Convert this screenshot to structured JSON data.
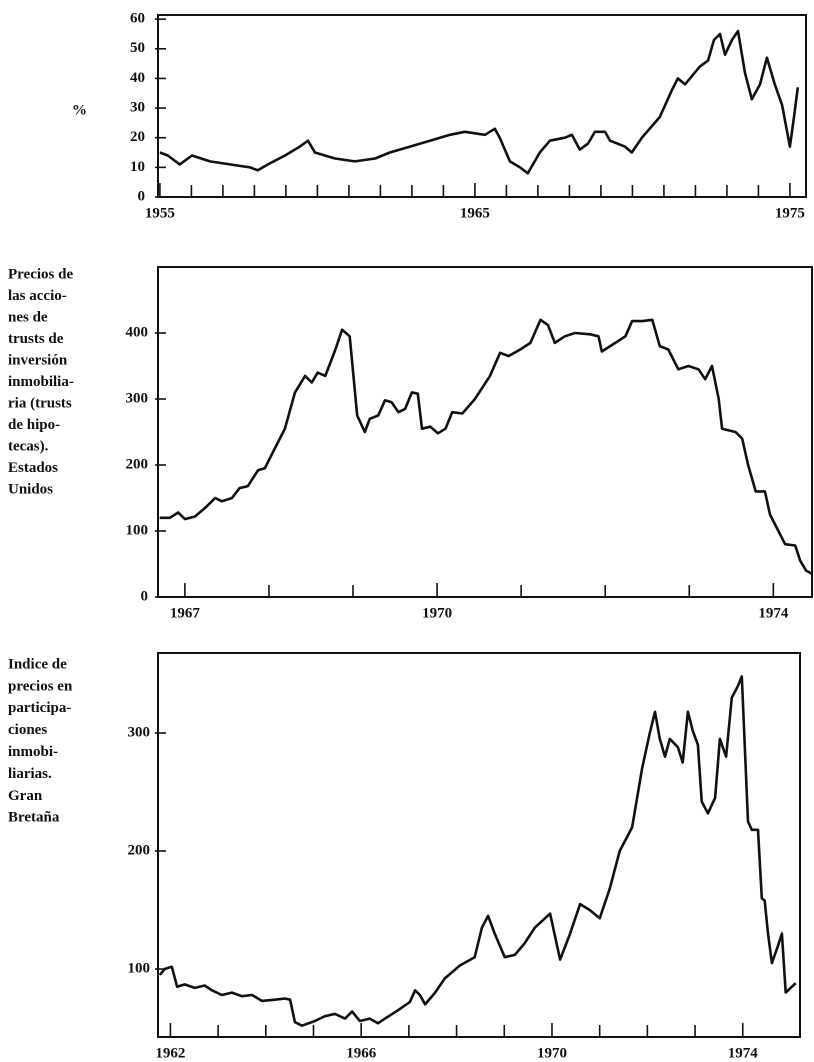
{
  "chart_data": [
    {
      "type": "line",
      "ylabel": [
        "%"
      ],
      "color": "#111111",
      "xlim": [
        1954.94,
        1975.51
      ],
      "xticks": [
        1955,
        1965,
        1975
      ],
      "minor_xticks": [
        1956,
        1957,
        1958,
        1959,
        1960,
        1961,
        1962,
        1963,
        1964,
        1966,
        1967,
        1968,
        1969,
        1970,
        1971,
        1972,
        1973,
        1974
      ],
      "ylim": [
        0,
        61.4
      ],
      "yticks": [
        0,
        10,
        20,
        30,
        40,
        50,
        60
      ],
      "x": [
        1955.0,
        1955.25,
        1955.63,
        1956.02,
        1956.59,
        1957.22,
        1957.86,
        1958.11,
        1958.43,
        1958.97,
        1959.44,
        1959.7,
        1959.92,
        1960.56,
        1961.19,
        1961.83,
        1962.3,
        1962.94,
        1963.57,
        1964.21,
        1964.68,
        1965.32,
        1965.63,
        1965.79,
        1966.11,
        1966.43,
        1966.68,
        1967.06,
        1967.38,
        1967.86,
        1968.08,
        1968.33,
        1968.59,
        1968.81,
        1969.13,
        1969.29,
        1969.76,
        1969.98,
        1970.3,
        1970.87,
        1971.25,
        1971.44,
        1971.67,
        1972.14,
        1972.4,
        1972.59,
        1972.78,
        1972.94,
        1973.16,
        1973.35,
        1973.57,
        1973.79,
        1974.05,
        1974.27,
        1974.52,
        1974.75,
        1975.0,
        1975.13,
        1975.25
      ],
      "values": [
        15,
        14,
        11,
        14,
        12,
        11,
        10,
        9,
        11,
        14,
        17,
        19,
        15,
        13,
        12,
        13,
        15,
        17,
        19,
        21,
        22,
        21,
        23,
        20,
        12,
        10,
        8,
        15,
        19,
        20,
        21,
        16,
        18,
        22,
        22,
        19,
        17,
        15,
        20,
        27,
        36,
        40,
        38,
        44,
        46,
        53,
        55,
        48,
        53,
        56,
        42,
        33,
        38,
        47,
        38,
        31,
        17,
        27,
        37
      ]
    },
    {
      "type": "line",
      "ylabel": [
        "Precios de",
        "las accio-",
        "nes de",
        "trusts de",
        "inversión",
        "inmobilia-",
        "ria (trusts",
        "de hipo-",
        "tecas).",
        "Estados",
        "Unidos"
      ],
      "color": "#111111",
      "xlim": [
        1966.68,
        1974.46
      ],
      "xticks": [
        1967,
        1970,
        1974
      ],
      "minor_xticks": [
        1968,
        1969,
        1971,
        1972,
        1973
      ],
      "ylim": [
        0,
        500
      ],
      "yticks": [
        0,
        100,
        200,
        300,
        400
      ],
      "x": [
        1966.7,
        1966.82,
        1966.92,
        1967.0,
        1967.12,
        1967.24,
        1967.36,
        1967.44,
        1967.56,
        1967.65,
        1967.75,
        1967.87,
        1967.95,
        1968.07,
        1968.19,
        1968.31,
        1968.43,
        1968.51,
        1968.58,
        1968.67,
        1968.79,
        1968.87,
        1968.96,
        1969.05,
        1969.14,
        1969.2,
        1969.3,
        1969.38,
        1969.46,
        1969.54,
        1969.62,
        1969.7,
        1969.77,
        1969.82,
        1969.92,
        1970.01,
        1970.1,
        1970.18,
        1970.3,
        1970.45,
        1970.63,
        1970.75,
        1970.85,
        1970.99,
        1971.11,
        1971.23,
        1971.32,
        1971.4,
        1971.52,
        1971.64,
        1971.82,
        1971.92,
        1971.96,
        1972.12,
        1972.24,
        1972.32,
        1972.44,
        1972.56,
        1972.65,
        1972.75,
        1972.87,
        1972.99,
        1973.11,
        1973.19,
        1973.27,
        1973.35,
        1973.39,
        1973.55,
        1973.63,
        1973.7,
        1973.79,
        1973.9,
        1973.96,
        1974.06,
        1974.14,
        1974.26,
        1974.32,
        1974.39,
        1974.46
      ],
      "values": [
        120,
        120,
        128,
        118,
        122,
        135,
        150,
        145,
        150,
        165,
        168,
        192,
        195,
        225,
        255,
        310,
        335,
        325,
        340,
        335,
        375,
        405,
        395,
        275,
        250,
        270,
        275,
        298,
        295,
        280,
        285,
        310,
        308,
        255,
        258,
        248,
        255,
        280,
        278,
        300,
        335,
        370,
        365,
        375,
        385,
        420,
        412,
        385,
        395,
        400,
        398,
        395,
        372,
        385,
        395,
        418,
        418,
        420,
        380,
        375,
        345,
        350,
        345,
        330,
        350,
        300,
        255,
        250,
        240,
        200,
        160,
        160,
        125,
        100,
        80,
        78,
        55,
        40,
        35
      ]
    },
    {
      "type": "line",
      "ylabel": [
        "Indice de",
        "precios en",
        "participa-",
        "ciones",
        "inmobi-",
        "liarias.",
        "Gran",
        "Bretaña"
      ],
      "color": "#111111",
      "xlim": [
        1961.74,
        1975.2
      ],
      "xticks": [
        1962,
        1966,
        1970,
        1974
      ],
      "minor_xticks": [
        1963,
        1964,
        1965,
        1967,
        1968,
        1969,
        1971,
        1972,
        1973
      ],
      "ylim": [
        42.4,
        367.8
      ],
      "yticks": [
        100,
        200,
        300
      ],
      "x": [
        1961.78,
        1961.88,
        1962.03,
        1962.14,
        1962.3,
        1962.51,
        1962.72,
        1962.87,
        1963.08,
        1963.29,
        1963.5,
        1963.71,
        1963.92,
        1964.19,
        1964.4,
        1964.51,
        1964.61,
        1964.76,
        1965.03,
        1965.24,
        1965.45,
        1965.66,
        1965.81,
        1965.97,
        1966.18,
        1966.35,
        1966.5,
        1966.77,
        1967.02,
        1967.13,
        1967.23,
        1967.34,
        1967.55,
        1967.75,
        1968.07,
        1968.38,
        1968.53,
        1968.66,
        1968.8,
        1969.01,
        1969.22,
        1969.43,
        1969.64,
        1969.96,
        1970.17,
        1970.38,
        1970.59,
        1970.79,
        1971.0,
        1971.21,
        1971.42,
        1971.68,
        1971.89,
        1972.05,
        1972.16,
        1972.26,
        1972.37,
        1972.47,
        1972.64,
        1972.74,
        1972.85,
        1972.95,
        1973.06,
        1973.14,
        1973.27,
        1973.42,
        1973.52,
        1973.65,
        1973.77,
        1973.9,
        1973.98,
        1974.11,
        1974.19,
        1974.32,
        1974.4,
        1974.46,
        1974.53,
        1974.61,
        1974.74,
        1974.82,
        1974.9,
        1975.03,
        1975.11
      ],
      "values": [
        95,
        100,
        102,
        85,
        87,
        84,
        86,
        82,
        78,
        80,
        77,
        78,
        73,
        74,
        75,
        74,
        55,
        52,
        56,
        60,
        62,
        58,
        64,
        56,
        58,
        54,
        58,
        65,
        72,
        82,
        78,
        70,
        80,
        92,
        103,
        110,
        135,
        145,
        130,
        110,
        112,
        122,
        135,
        147,
        108,
        130,
        155,
        150,
        143,
        168,
        200,
        220,
        270,
        300,
        318,
        295,
        280,
        295,
        288,
        275,
        318,
        302,
        290,
        242,
        232,
        245,
        295,
        280,
        330,
        340,
        348,
        225,
        218,
        218,
        160,
        158,
        130,
        105,
        120,
        130,
        80,
        85,
        88
      ]
    }
  ]
}
